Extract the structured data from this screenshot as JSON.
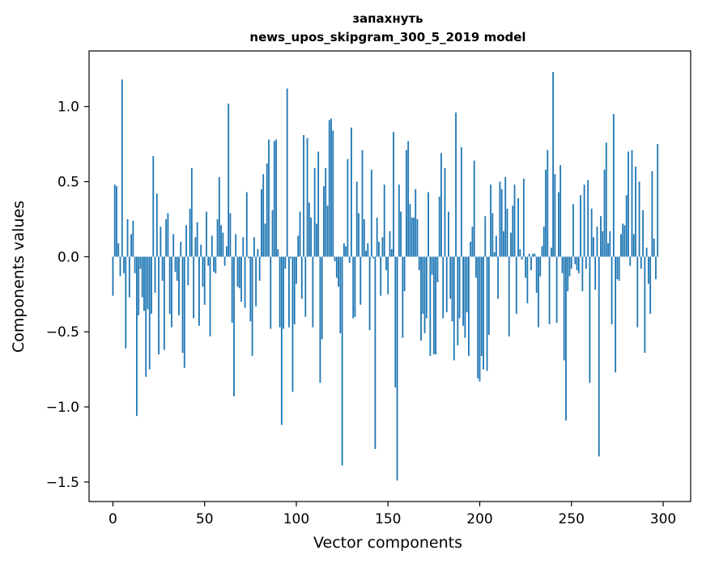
{
  "chart_data": {
    "type": "bar",
    "title_line1": "запахнуть",
    "title_line2": "news_upos_skipgram_300_5_2019 model",
    "xlabel": "Vector components",
    "ylabel": "Components values",
    "xlim": [
      -13,
      315
    ],
    "ylim": [
      -1.63,
      1.37
    ],
    "xticks": [
      0,
      50,
      100,
      150,
      200,
      250,
      300
    ],
    "xtick_labels": [
      "0",
      "50",
      "100",
      "150",
      "200",
      "250",
      "300"
    ],
    "yticks": [
      -1.5,
      -1.0,
      -0.5,
      0.0,
      0.5,
      1.0
    ],
    "ytick_labels": [
      "−1.5",
      "−1.0",
      "−0.5",
      "0.0",
      "0.5",
      "1.0"
    ],
    "bar_color": "#1f77b4",
    "grid": false,
    "values": [
      -0.26,
      0.48,
      0.47,
      0.09,
      -0.13,
      1.18,
      -0.11,
      -0.61,
      0.25,
      -0.27,
      0.15,
      0.24,
      -0.11,
      -1.06,
      -0.39,
      -0.08,
      -0.27,
      -0.36,
      -0.8,
      -0.35,
      -0.75,
      -0.38,
      0.67,
      -0.24,
      0.42,
      -0.65,
      0.2,
      -0.16,
      -0.62,
      0.25,
      0.29,
      -0.38,
      -0.47,
      0.15,
      -0.1,
      -0.16,
      -0.39,
      0.1,
      -0.64,
      -0.74,
      0.21,
      -0.19,
      0.32,
      0.59,
      -0.41,
      0.13,
      0.23,
      -0.46,
      0.08,
      -0.2,
      -0.32,
      0.3,
      -0.06,
      -0.53,
      0.14,
      -0.1,
      -0.11,
      0.25,
      0.53,
      0.21,
      0.16,
      -0.06,
      0.07,
      1.02,
      0.29,
      -0.44,
      -0.93,
      0.15,
      -0.2,
      -0.21,
      -0.3,
      0.13,
      -0.34,
      0.43,
      -0.01,
      -0.43,
      -0.66,
      0.13,
      -0.33,
      0.05,
      -0.16,
      0.45,
      0.55,
      0.22,
      0.62,
      0.78,
      -0.48,
      0.31,
      0.77,
      0.78,
      0.05,
      -0.47,
      -1.12,
      -0.48,
      -0.08,
      1.12,
      -0.47,
      -0.01,
      -0.9,
      -0.45,
      -0.18,
      0.14,
      0.3,
      -0.28,
      0.81,
      -0.4,
      0.79,
      0.36,
      0.26,
      -0.47,
      0.59,
      0.22,
      0.7,
      -0.84,
      -0.55,
      0.47,
      0.59,
      0.34,
      0.91,
      0.92,
      0.84,
      -0.03,
      -0.14,
      -0.2,
      -0.51,
      -1.39,
      0.09,
      0.07,
      0.65,
      -0.04,
      0.86,
      -0.41,
      -0.4,
      0.5,
      0.29,
      -0.32,
      0.71,
      0.25,
      0.04,
      0.09,
      -0.49,
      0.58,
      -0.01,
      -1.28,
      0.26,
      0.1,
      -0.26,
      0.13,
      0.48,
      -0.09,
      -0.25,
      0.17,
      0.05,
      0.83,
      -0.87,
      -1.49,
      0.48,
      0.3,
      -0.54,
      -0.23,
      0.71,
      0.77,
      0.35,
      0.26,
      0.26,
      0.45,
      0.25,
      -0.09,
      -0.56,
      -0.38,
      -0.51,
      -0.41,
      0.43,
      -0.66,
      -0.12,
      -0.65,
      -0.65,
      -0.17,
      0.4,
      0.69,
      -0.41,
      0.59,
      -0.37,
      0.3,
      -0.28,
      -0.43,
      -0.69,
      0.96,
      -0.59,
      -0.41,
      0.73,
      -0.46,
      -0.54,
      -0.37,
      -0.66,
      0.1,
      0.2,
      0.64,
      -0.14,
      -0.81,
      -0.83,
      -0.66,
      -0.75,
      0.27,
      -0.76,
      -0.52,
      0.48,
      0.29,
      0.03,
      0.14,
      -0.28,
      0.5,
      0.45,
      0.17,
      0.53,
      0.32,
      -0.53,
      0.16,
      0.34,
      0.48,
      -0.38,
      0.39,
      0.05,
      -0.02,
      0.52,
      -0.14,
      -0.31,
      0.02,
      -0.09,
      0.02,
      0.02,
      -0.24,
      -0.47,
      -0.13,
      0.07,
      0.2,
      0.58,
      0.71,
      -0.45,
      0.06,
      1.23,
      0.55,
      -0.44,
      0.43,
      0.61,
      -0.11,
      -0.69,
      -1.09,
      -0.23,
      -0.13,
      -0.08,
      0.35,
      -0.05,
      -0.09,
      -0.11,
      0.41,
      -0.23,
      0.48,
      -0.08,
      0.51,
      -0.84,
      0.32,
      0.13,
      -0.22,
      0.2,
      -1.33,
      0.27,
      0.17,
      0.58,
      0.76,
      0.09,
      0.17,
      -0.45,
      0.95,
      -0.77,
      -0.15,
      -0.16,
      0.15,
      0.22,
      0.21,
      0.41,
      0.7,
      -0.06,
      0.71,
      0.15,
      0.6,
      -0.47,
      0.5,
      -0.08,
      0.31,
      -0.64,
      0.06,
      -0.18,
      -0.38,
      0.57,
      0.12,
      -0.15,
      0.75
    ]
  }
}
